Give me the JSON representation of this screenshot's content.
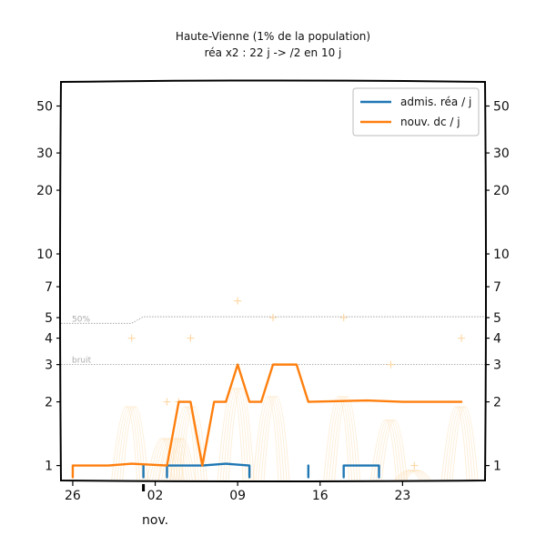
{
  "chart_data": {
    "type": "line",
    "title": "Haute-Vienne (1% de la population)",
    "subtitle": "réa x2 : 22 j -> /2 en 10 j",
    "yscale": "log",
    "ylim": [
      0.85,
      65
    ],
    "y_ticks": [
      1,
      2,
      3,
      4,
      5,
      7,
      10,
      20,
      30,
      50
    ],
    "y_tick_labels": [
      "1",
      "2",
      "3",
      "4",
      "5",
      "7",
      "10",
      "20",
      "30",
      "50"
    ],
    "x_range": [
      "2020-10-25",
      "2020-11-30"
    ],
    "x_ticks": [
      {
        "date": "2020-10-26",
        "label": "26"
      },
      {
        "date": "2020-11-02",
        "label": "02"
      },
      {
        "date": "2020-11-09",
        "label": "09"
      },
      {
        "date": "2020-11-16",
        "label": "16"
      },
      {
        "date": "2020-11-23",
        "label": "23"
      }
    ],
    "month_label": "nov.",
    "legend_position": "top-right",
    "reference_lines": [
      {
        "label": "50%",
        "points": [
          [
            "2020-10-25",
            4.7
          ],
          [
            "2020-10-31",
            4.7
          ],
          [
            "2020-11-01",
            5.05
          ],
          [
            "2020-11-30",
            5.05
          ]
        ]
      },
      {
        "label": "bruit",
        "points": [
          [
            "2020-10-25",
            3.0
          ],
          [
            "2020-11-30",
            3.0
          ]
        ]
      }
    ],
    "series": [
      {
        "name": "admis. réa / j",
        "color": "#1f77b4",
        "segments": [
          [
            [
              "2020-11-01",
              1.0
            ],
            [
              "2020-11-01",
              0.88
            ]
          ],
          [
            [
              "2020-11-03",
              0.88
            ],
            [
              "2020-11-03",
              1.0
            ],
            [
              "2020-11-06",
              1.0
            ],
            [
              "2020-11-08",
              1.02
            ],
            [
              "2020-11-10",
              1.0
            ],
            [
              "2020-11-10",
              0.88
            ]
          ],
          [
            [
              "2020-11-15",
              0.88
            ],
            [
              "2020-11-15",
              1.0
            ]
          ],
          [
            [
              "2020-11-18",
              0.88
            ],
            [
              "2020-11-18",
              1.0
            ],
            [
              "2020-11-21",
              1.0
            ],
            [
              "2020-11-21",
              0.88
            ]
          ]
        ]
      },
      {
        "name": "nouv. dc / j",
        "color": "#ff7f0e",
        "segments": [
          [
            [
              "2020-10-26",
              0.88
            ],
            [
              "2020-10-26",
              1.0
            ],
            [
              "2020-10-29",
              1.0
            ],
            [
              "2020-10-31",
              1.02
            ],
            [
              "2020-11-03",
              1.0
            ],
            [
              "2020-11-04",
              2.0
            ],
            [
              "2020-11-05",
              2.0
            ],
            [
              "2020-11-06",
              1.0
            ],
            [
              "2020-11-07",
              2.0
            ],
            [
              "2020-11-08",
              2.0
            ],
            [
              "2020-11-09",
              3.0
            ],
            [
              "2020-11-10",
              2.0
            ],
            [
              "2020-11-11",
              2.0
            ],
            [
              "2020-11-12",
              3.0
            ],
            [
              "2020-11-14",
              3.0
            ],
            [
              "2020-11-15",
              2.0
            ],
            [
              "2020-11-20",
              2.03
            ],
            [
              "2020-11-23",
              2.0
            ],
            [
              "2020-11-28",
              2.0
            ]
          ]
        ]
      }
    ],
    "raw_points": {
      "color": "#fdd9a8",
      "points": [
        [
          "2020-10-31",
          4.0
        ],
        [
          "2020-11-03",
          2.0
        ],
        [
          "2020-11-04",
          2.0
        ],
        [
          "2020-11-05",
          4.0
        ],
        [
          "2020-11-09",
          6.0
        ],
        [
          "2020-11-12",
          5.0
        ],
        [
          "2020-11-18",
          5.0
        ],
        [
          "2020-11-22",
          3.0
        ],
        [
          "2020-11-24",
          1.0
        ],
        [
          "2020-11-28",
          4.0
        ]
      ]
    }
  }
}
